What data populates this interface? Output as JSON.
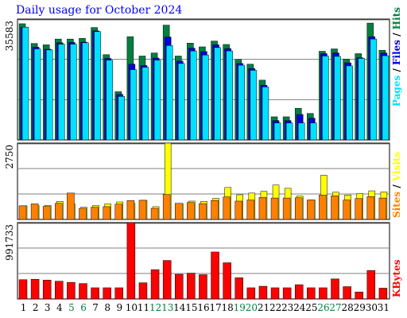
{
  "title": "Daily usage for October 2024",
  "chart_data": [
    {
      "type": "bar",
      "panel": "hits-files-pages",
      "ymax_label": "35583",
      "ylim": [
        0,
        35583
      ],
      "grid": true,
      "legend": [
        {
          "name": "Pages",
          "color": "#00e0ff"
        },
        {
          "name": "Files",
          "color": "#0000e0"
        },
        {
          "name": "Hits",
          "color": "#008040"
        }
      ],
      "categories": [
        "1",
        "2",
        "3",
        "4",
        "5",
        "6",
        "7",
        "8",
        "9",
        "10",
        "11",
        "12",
        "13",
        "14",
        "15",
        "16",
        "17",
        "18",
        "19",
        "20",
        "21",
        "22",
        "23",
        "24",
        "25",
        "26",
        "27",
        "28",
        "29",
        "30",
        "31"
      ],
      "series": [
        {
          "name": "Hits",
          "values": [
            34200,
            28400,
            28000,
            29700,
            29700,
            29900,
            33100,
            25100,
            14200,
            30400,
            24700,
            25600,
            33800,
            24700,
            28500,
            27400,
            29100,
            28100,
            23700,
            22300,
            17600,
            6800,
            6800,
            9300,
            7800,
            26100,
            26800,
            23800,
            25400,
            34400,
            26400
          ]
        },
        {
          "name": "Files",
          "values": [
            33200,
            27300,
            26700,
            28600,
            28700,
            28800,
            32100,
            24000,
            13400,
            22300,
            21900,
            24100,
            30300,
            23200,
            27000,
            26000,
            28000,
            26900,
            22500,
            21000,
            16100,
            5700,
            5700,
            7500,
            6400,
            25400,
            25600,
            22700,
            24200,
            30400,
            25600
          ]
        },
        {
          "name": "Pages",
          "values": [
            33200,
            26800,
            26500,
            28200,
            28200,
            28600,
            31900,
            23500,
            12800,
            20700,
            21400,
            23500,
            27800,
            22500,
            26200,
            25000,
            27200,
            26200,
            22000,
            20500,
            15600,
            5000,
            5000,
            5000,
            5000,
            24700,
            24600,
            21800,
            24000,
            29700,
            24800
          ]
        }
      ]
    },
    {
      "type": "bar",
      "panel": "visits-sites",
      "ymax_label": "2750",
      "ylim": [
        0,
        2750
      ],
      "grid": true,
      "legend": [
        {
          "name": "Sites",
          "color": "#ff8000"
        },
        {
          "name": "Visits",
          "color": "#ffff00"
        }
      ],
      "categories": [
        "1",
        "2",
        "3",
        "4",
        "5",
        "6",
        "7",
        "8",
        "9",
        "10",
        "11",
        "12",
        "13",
        "14",
        "15",
        "16",
        "17",
        "18",
        "19",
        "20",
        "21",
        "22",
        "23",
        "24",
        "25",
        "26",
        "27",
        "28",
        "29",
        "30",
        "31"
      ],
      "series": [
        {
          "name": "Visits",
          "values": [
            490,
            500,
            510,
            650,
            560,
            440,
            500,
            560,
            630,
            580,
            690,
            460,
            2750,
            570,
            660,
            650,
            760,
            1150,
            890,
            950,
            1010,
            1240,
            1120,
            840,
            700,
            1590,
            980,
            880,
            930,
            1030,
            990
          ]
        },
        {
          "name": "Sites",
          "values": [
            490,
            560,
            470,
            580,
            950,
            400,
            440,
            460,
            550,
            680,
            690,
            400,
            900,
            580,
            610,
            570,
            680,
            810,
            660,
            700,
            790,
            770,
            770,
            780,
            700,
            880,
            850,
            700,
            750,
            820,
            770
          ]
        }
      ]
    },
    {
      "type": "bar",
      "panel": "kbytes",
      "ymax_label": "991733",
      "ylim": [
        0,
        991733
      ],
      "grid": true,
      "legend": [
        {
          "name": "KBytes",
          "color": "#ff0000"
        }
      ],
      "categories": [
        "1",
        "2",
        "3",
        "4",
        "5",
        "6",
        "7",
        "8",
        "9",
        "10",
        "11",
        "12",
        "13",
        "14",
        "15",
        "16",
        "17",
        "18",
        "19",
        "20",
        "21",
        "22",
        "23",
        "24",
        "25",
        "26",
        "27",
        "28",
        "29",
        "30",
        "31"
      ],
      "series": [
        {
          "name": "KBytes",
          "values": [
            250000,
            255000,
            245000,
            230000,
            215000,
            200000,
            145000,
            145000,
            145000,
            991733,
            210000,
            380000,
            500000,
            320000,
            335000,
            315000,
            610000,
            470000,
            275000,
            145000,
            165000,
            145000,
            145000,
            185000,
            145000,
            145000,
            260000,
            160000,
            90000,
            370000,
            140000
          ]
        }
      ]
    }
  ],
  "weekend_days": [
    "5",
    "6",
    "12",
    "13",
    "19",
    "20",
    "26",
    "27"
  ],
  "colors": {
    "weekday_label": "#000000",
    "weekend_label": "#008040",
    "title": "#0000ff",
    "bar_edge": "#000000"
  }
}
